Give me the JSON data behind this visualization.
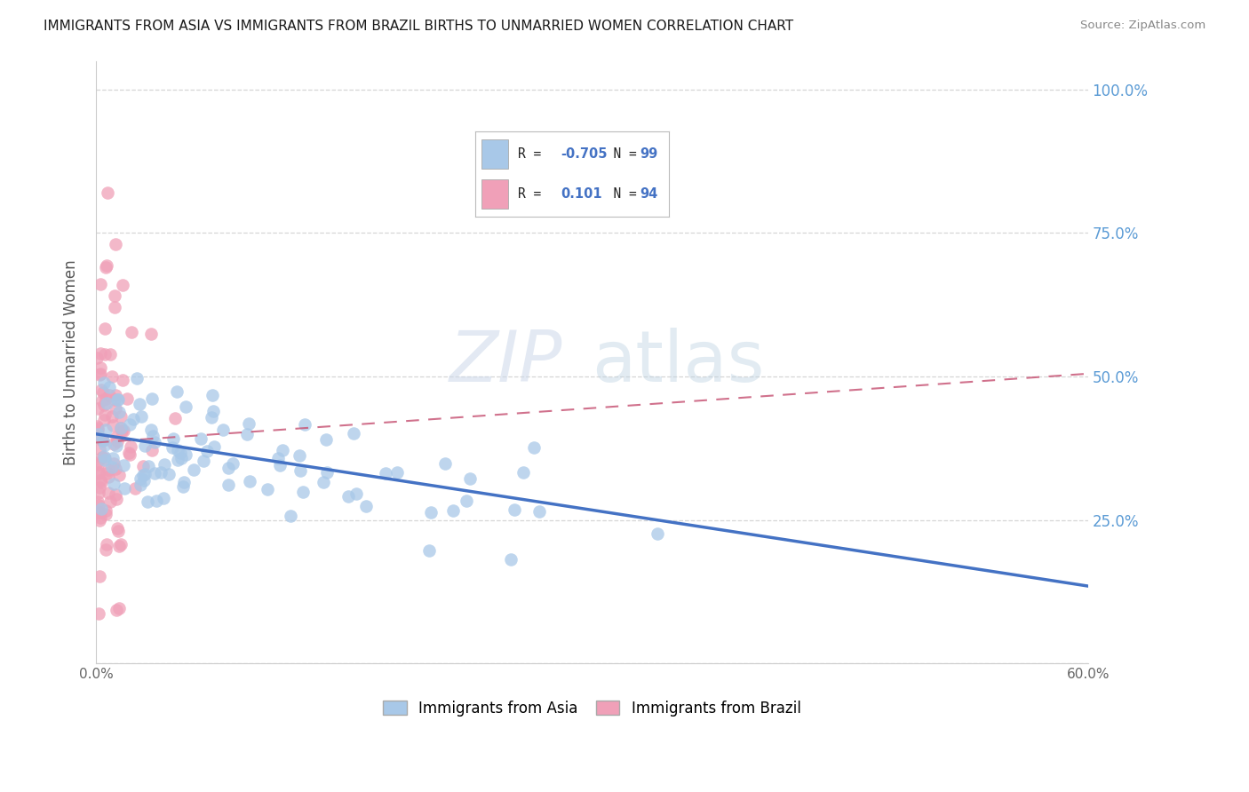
{
  "title": "IMMIGRANTS FROM ASIA VS IMMIGRANTS FROM BRAZIL BIRTHS TO UNMARRIED WOMEN CORRELATION CHART",
  "source": "Source: ZipAtlas.com",
  "ylabel": "Births to Unmarried Women",
  "xmin": 0.0,
  "xmax": 0.6,
  "ymin": 0.0,
  "ymax": 1.05,
  "color_asia": "#a8c8e8",
  "color_asia_line": "#4472c4",
  "color_brazil": "#f0a0b8",
  "color_brazil_line": "#c85878",
  "color_right_axis": "#5b9bd5",
  "background_color": "#ffffff",
  "legend_asia_r": "-0.705",
  "legend_asia_n": "99",
  "legend_brazil_r": "0.101",
  "legend_brazil_n": "94",
  "watermark_zip": "ZIP",
  "watermark_atlas": "atlas",
  "asia_trend_x0": 0.0,
  "asia_trend_y0": 0.4,
  "asia_trend_x1": 0.6,
  "asia_trend_y1": 0.135,
  "brazil_trend_x0": 0.0,
  "brazil_trend_y0": 0.385,
  "brazil_trend_x1": 0.6,
  "brazil_trend_y1": 0.505
}
